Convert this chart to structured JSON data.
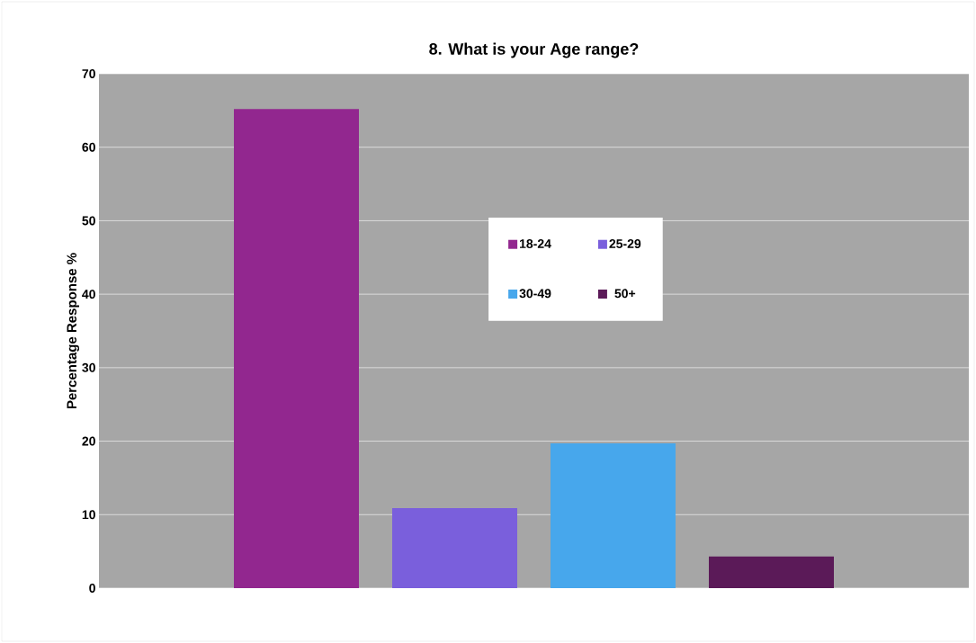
{
  "chart_data": {
    "type": "bar",
    "title": "8. What is your Age range?",
    "ylabel": "Percentage Response %",
    "categories": [
      null
    ],
    "series": [
      {
        "name": "18-24",
        "color": "#92278f",
        "values": [
          65.2
        ]
      },
      {
        "name": "25-29",
        "color": "#7a5fdc",
        "values": [
          10.9
        ]
      },
      {
        "name": "30-49",
        "color": "#47a7ec",
        "values": [
          19.7
        ]
      },
      {
        "name": "50+",
        "color": "#5b1a58",
        "values": [
          4.3
        ]
      }
    ],
    "ylim": [
      0,
      70
    ],
    "yticks": [
      0,
      10,
      20,
      30,
      40,
      50,
      60,
      70
    ],
    "grid": "y",
    "legend": "center"
  }
}
